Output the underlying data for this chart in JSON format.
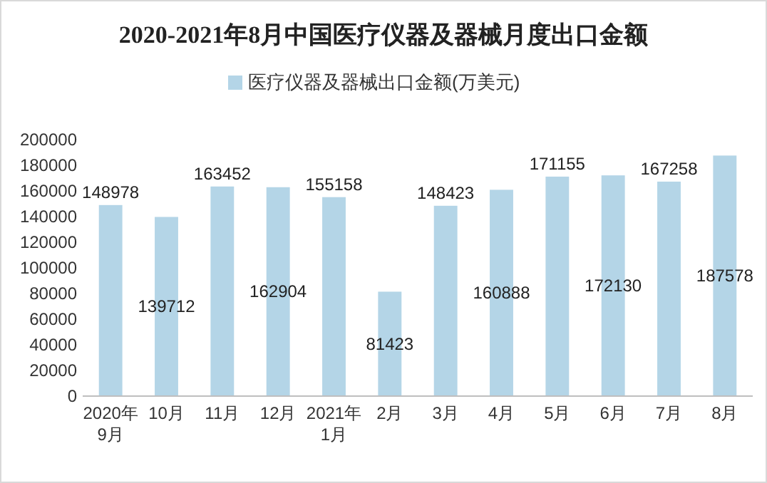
{
  "chart_data": {
    "type": "bar",
    "title": "2020-2021年8月中国医疗仪器及器械月度出口金额",
    "categories": [
      "2020年9月",
      "10月",
      "11月",
      "12月",
      "2021年1月",
      "2月",
      "3月",
      "4月",
      "5月",
      "6月",
      "7月",
      "8月"
    ],
    "series": [
      {
        "name": "医疗仪器及器械出口金额(万美元)",
        "color": "#b4d5e7",
        "values": [
          148978,
          139712,
          163452,
          162904,
          155158,
          81423,
          148423,
          160888,
          171155,
          172130,
          167258,
          187578
        ]
      }
    ],
    "ylim": [
      0,
      200000
    ],
    "yticks": [
      0,
      20000,
      40000,
      60000,
      80000,
      100000,
      120000,
      140000,
      160000,
      180000,
      200000
    ],
    "data_labels": true,
    "legend": "top",
    "grid": false
  }
}
